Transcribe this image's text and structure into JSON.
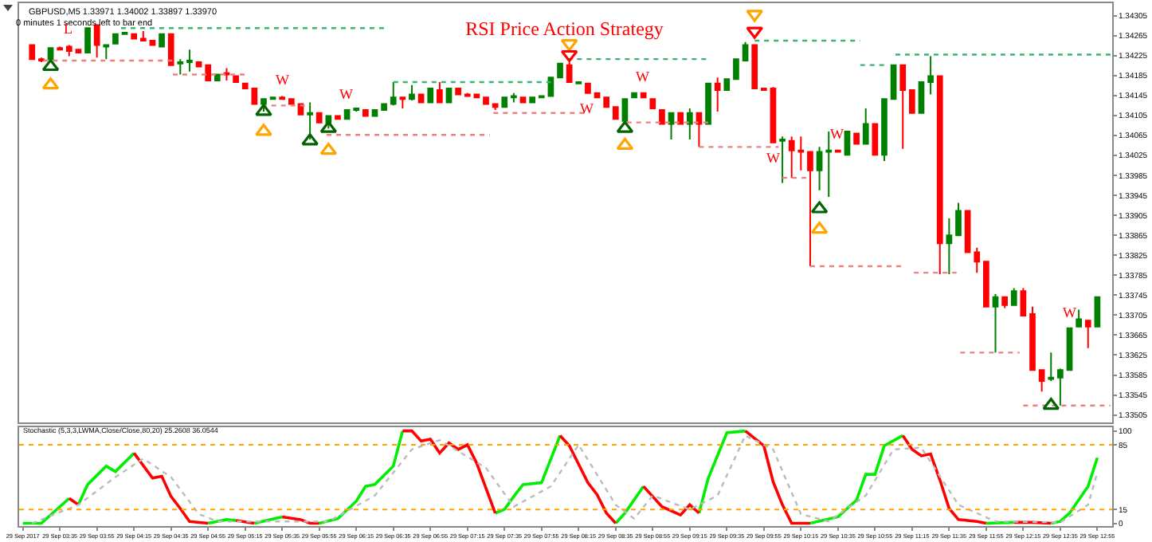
{
  "chart_data": [
    {
      "type": "candlestick",
      "title": "RSI Price Action Strategy",
      "annotations": [
        "GBPUSD,M5 1.33971 1.34002 1.33897 1.33970",
        "0 minutes 1 seconds left to bar end",
        {
          "text": "L",
          "x": "2017-09-29T03:40",
          "y": 1.34246
        },
        {
          "text": "W",
          "x": "2017-09-29T05:35",
          "y": 1.34144
        },
        {
          "text": "W",
          "x": "2017-09-29T06:10",
          "y": 1.34116
        },
        {
          "text": "W",
          "x": "2017-09-29T08:20",
          "y": 1.3415
        },
        {
          "text": "W",
          "x": "2017-09-29T08:50",
          "y": 1.3415
        },
        {
          "text": "W",
          "x": "2017-09-29T10:00",
          "y": 1.34051
        },
        {
          "text": "W",
          "x": "2017-09-29T10:35",
          "y": 1.34035
        },
        {
          "text": "W",
          "x": "2017-09-29T12:40",
          "y": 1.33679
        }
      ],
      "x": [
        "2017-09-29T03:20",
        "2017-09-29T03:25",
        "2017-09-29T03:30",
        "2017-09-29T03:35",
        "2017-09-29T03:40",
        "2017-09-29T03:45",
        "2017-09-29T03:50",
        "2017-09-29T03:55",
        "2017-09-29T04:00",
        "2017-09-29T04:05",
        "2017-09-29T04:10",
        "2017-09-29T04:15",
        "2017-09-29T04:20",
        "2017-09-29T04:25",
        "2017-09-29T04:30",
        "2017-09-29T04:35",
        "2017-09-29T04:40",
        "2017-09-29T04:45",
        "2017-09-29T04:50",
        "2017-09-29T04:55",
        "2017-09-29T05:00",
        "2017-09-29T05:05",
        "2017-09-29T05:10",
        "2017-09-29T05:15",
        "2017-09-29T05:20",
        "2017-09-29T05:25",
        "2017-09-29T05:30",
        "2017-09-29T05:35",
        "2017-09-29T05:40",
        "2017-09-29T05:45",
        "2017-09-29T05:50",
        "2017-09-29T05:55",
        "2017-09-29T06:00",
        "2017-09-29T06:05",
        "2017-09-29T06:10",
        "2017-09-29T06:15",
        "2017-09-29T06:20",
        "2017-09-29T06:25",
        "2017-09-29T06:30",
        "2017-09-29T06:35",
        "2017-09-29T06:40",
        "2017-09-29T06:45",
        "2017-09-29T06:50",
        "2017-09-29T06:55",
        "2017-09-29T07:00",
        "2017-09-29T07:05",
        "2017-09-29T07:10",
        "2017-09-29T07:15",
        "2017-09-29T07:20",
        "2017-09-29T07:25",
        "2017-09-29T07:30",
        "2017-09-29T07:35",
        "2017-09-29T07:40",
        "2017-09-29T07:45",
        "2017-09-29T07:50",
        "2017-09-29T07:55",
        "2017-09-29T08:00",
        "2017-09-29T08:05",
        "2017-09-29T08:10",
        "2017-09-29T08:15",
        "2017-09-29T08:20",
        "2017-09-29T08:25",
        "2017-09-29T08:30",
        "2017-09-29T08:35",
        "2017-09-29T08:40",
        "2017-09-29T08:45",
        "2017-09-29T08:50",
        "2017-09-29T08:55",
        "2017-09-29T09:00",
        "2017-09-29T09:05",
        "2017-09-29T09:10",
        "2017-09-29T09:15",
        "2017-09-29T09:20",
        "2017-09-29T09:25",
        "2017-09-29T09:30",
        "2017-09-29T09:35",
        "2017-09-29T09:40",
        "2017-09-29T09:45",
        "2017-09-29T09:50",
        "2017-09-29T09:55",
        "2017-09-29T10:00",
        "2017-09-29T10:05",
        "2017-09-29T10:10",
        "2017-09-29T10:15",
        "2017-09-29T10:20",
        "2017-09-29T10:25",
        "2017-09-29T10:30",
        "2017-09-29T10:35",
        "2017-09-29T10:40",
        "2017-09-29T10:45",
        "2017-09-29T10:50",
        "2017-09-29T10:55",
        "2017-09-29T11:00",
        "2017-09-29T11:05",
        "2017-09-29T11:10",
        "2017-09-29T11:15",
        "2017-09-29T11:20",
        "2017-09-29T11:25",
        "2017-09-29T11:30",
        "2017-09-29T11:35",
        "2017-09-29T11:40",
        "2017-09-29T11:45",
        "2017-09-29T11:50",
        "2017-09-29T11:55",
        "2017-09-29T12:00",
        "2017-09-29T12:05",
        "2017-09-29T12:10",
        "2017-09-29T12:15",
        "2017-09-29T12:20",
        "2017-09-29T12:25",
        "2017-09-29T12:30",
        "2017-09-29T12:35",
        "2017-09-29T12:40",
        "2017-09-29T12:45",
        "2017-09-29T12:50",
        "2017-09-29T12:55"
      ],
      "ohlc": [
        [
          1.34246,
          1.34246,
          1.34218,
          1.34218
        ],
        [
          1.34218,
          1.34221,
          1.34212,
          1.34215
        ],
        [
          1.34218,
          1.3424,
          1.34218,
          1.3424
        ],
        [
          1.3424,
          1.34243,
          1.34237,
          1.34237
        ],
        [
          1.34243,
          1.34246,
          1.34224,
          1.34234
        ],
        [
          1.34237,
          1.34237,
          1.34231,
          1.34231
        ],
        [
          1.34231,
          1.3428,
          1.34231,
          1.3428
        ],
        [
          1.34286,
          1.34286,
          1.34221,
          1.34246
        ],
        [
          1.34243,
          1.34246,
          1.34218,
          1.34246
        ],
        [
          1.34249,
          1.34268,
          1.34249,
          1.34268
        ],
        [
          1.34268,
          1.34271,
          1.34268,
          1.34271
        ],
        [
          1.34268,
          1.34268,
          1.34259,
          1.34259
        ],
        [
          1.34259,
          1.34274,
          1.34255,
          1.34255
        ],
        [
          1.34255,
          1.34255,
          1.34246,
          1.34246
        ],
        [
          1.34243,
          1.34268,
          1.34243,
          1.34268
        ],
        [
          1.34268,
          1.34268,
          1.34206,
          1.34206
        ],
        [
          1.34209,
          1.34218,
          1.34187,
          1.34212
        ],
        [
          1.34212,
          1.34237,
          1.34193,
          1.34215
        ],
        [
          1.34212,
          1.34212,
          1.34203,
          1.34203
        ],
        [
          1.34206,
          1.34206,
          1.34175,
          1.34175
        ],
        [
          1.34175,
          1.34187,
          1.34175,
          1.34187
        ],
        [
          1.3419,
          1.342,
          1.34175,
          1.34187
        ],
        [
          1.34184,
          1.34184,
          1.34172,
          1.34172
        ],
        [
          1.34169,
          1.34169,
          1.34159,
          1.34159
        ],
        [
          1.34159,
          1.34159,
          1.34128,
          1.34128
        ],
        [
          1.34128,
          1.34138,
          1.34113,
          1.34138
        ],
        [
          1.34138,
          1.34141,
          1.34138,
          1.34141
        ],
        [
          1.34141,
          1.34144,
          1.34138,
          1.34138
        ],
        [
          1.34138,
          1.34138,
          1.34128,
          1.34128
        ],
        [
          1.34128,
          1.34128,
          1.34107,
          1.34107
        ],
        [
          1.34107,
          1.34131,
          1.34057,
          1.3411
        ],
        [
          1.3411,
          1.3411,
          1.34091,
          1.34091
        ],
        [
          1.34091,
          1.34104,
          1.34079,
          1.34104
        ],
        [
          1.34104,
          1.34104,
          1.34098,
          1.34098
        ],
        [
          1.34098,
          1.34116,
          1.34098,
          1.34116
        ],
        [
          1.34116,
          1.34119,
          1.34113,
          1.34119
        ],
        [
          1.34116,
          1.34116,
          1.34104,
          1.34104
        ],
        [
          1.34104,
          1.34116,
          1.34104,
          1.34116
        ],
        [
          1.34116,
          1.34128,
          1.34116,
          1.34128
        ],
        [
          1.34128,
          1.34172,
          1.34125,
          1.34141
        ],
        [
          1.34141,
          1.34141,
          1.34119,
          1.34138
        ],
        [
          1.34138,
          1.34166,
          1.34135,
          1.34147
        ],
        [
          1.34147,
          1.34147,
          1.34131,
          1.34131
        ],
        [
          1.34131,
          1.34159,
          1.34131,
          1.34159
        ],
        [
          1.34156,
          1.34172,
          1.34131,
          1.34131
        ],
        [
          1.34131,
          1.34159,
          1.34131,
          1.34159
        ],
        [
          1.34159,
          1.34159,
          1.34147,
          1.34147
        ],
        [
          1.34147,
          1.3415,
          1.34144,
          1.34144
        ],
        [
          1.34147,
          1.34147,
          1.34141,
          1.34141
        ],
        [
          1.34141,
          1.34141,
          1.34128,
          1.34128
        ],
        [
          1.34128,
          1.34128,
          1.34116,
          1.34122
        ],
        [
          1.34122,
          1.34141,
          1.34122,
          1.34141
        ],
        [
          1.34141,
          1.3415,
          1.34131,
          1.34144
        ],
        [
          1.34141,
          1.34141,
          1.34131,
          1.34131
        ],
        [
          1.34131,
          1.34141,
          1.34131,
          1.34141
        ],
        [
          1.34141,
          1.34144,
          1.34141,
          1.34144
        ],
        [
          1.34144,
          1.34181,
          1.34144,
          1.34181
        ],
        [
          1.34181,
          1.34209,
          1.34181,
          1.34209
        ],
        [
          1.34206,
          1.34212,
          1.34172,
          1.34172
        ],
        [
          1.34169,
          1.34172,
          1.34169,
          1.34172
        ],
        [
          1.34169,
          1.34169,
          1.3415,
          1.3415
        ],
        [
          1.3415,
          1.3415,
          1.34141,
          1.34141
        ],
        [
          1.34141,
          1.34141,
          1.34122,
          1.34122
        ],
        [
          1.34122,
          1.34122,
          1.34098,
          1.34098
        ],
        [
          1.34094,
          1.34138,
          1.34094,
          1.34138
        ],
        [
          1.34141,
          1.3415,
          1.34141,
          1.3415
        ],
        [
          1.3415,
          1.3415,
          1.34141,
          1.34141
        ],
        [
          1.34138,
          1.34138,
          1.34119,
          1.34119
        ],
        [
          1.34116,
          1.34116,
          1.34088,
          1.34088
        ],
        [
          1.34088,
          1.3411,
          1.34057,
          1.3411
        ],
        [
          1.3411,
          1.3411,
          1.34088,
          1.34088
        ],
        [
          1.34088,
          1.34119,
          1.34057,
          1.3411
        ],
        [
          1.3411,
          1.3411,
          1.34042,
          1.34088
        ],
        [
          1.34088,
          1.34169,
          1.34088,
          1.34169
        ],
        [
          1.34169,
          1.34181,
          1.34113,
          1.34156
        ],
        [
          1.34156,
          1.34178,
          1.34156,
          1.34178
        ],
        [
          1.34178,
          1.34218,
          1.34178,
          1.34218
        ],
        [
          1.34215,
          1.34252,
          1.34215,
          1.34246
        ],
        [
          1.34246,
          1.34246,
          1.34159,
          1.34159
        ],
        [
          1.34159,
          1.34159,
          1.34156,
          1.34156
        ],
        [
          1.34159,
          1.34162,
          1.34051,
          1.34051
        ],
        [
          1.34054,
          1.34063,
          1.3397,
          1.34057
        ],
        [
          1.34054,
          1.34063,
          1.3398,
          1.34035
        ],
        [
          1.34035,
          1.34063,
          1.33995,
          1.34032
        ],
        [
          1.34032,
          1.34032,
          1.33803,
          1.33995
        ],
        [
          1.33995,
          1.34042,
          1.33955,
          1.34032
        ],
        [
          1.34032,
          1.34073,
          1.33942,
          1.34035
        ],
        [
          1.34035,
          1.34035,
          1.34032,
          1.34032
        ],
        [
          1.34026,
          1.34073,
          1.34026,
          1.34073
        ],
        [
          1.34069,
          1.34069,
          1.34048,
          1.34048
        ],
        [
          1.34048,
          1.34119,
          1.34048,
          1.34088
        ],
        [
          1.34088,
          1.34088,
          1.34026,
          1.34026
        ],
        [
          1.34026,
          1.34138,
          1.34014,
          1.34138
        ],
        [
          1.34138,
          1.34206,
          1.34138,
          1.34206
        ],
        [
          1.34206,
          1.34206,
          1.34038,
          1.34156
        ],
        [
          1.34156,
          1.34156,
          1.3411,
          1.3411
        ],
        [
          1.3411,
          1.34172,
          1.3411,
          1.34172
        ],
        [
          1.34172,
          1.34224,
          1.34147,
          1.34184
        ],
        [
          1.34184,
          1.34184,
          1.33787,
          1.33849
        ],
        [
          1.33849,
          1.33899,
          1.33787,
          1.33865
        ],
        [
          1.33865,
          1.3393,
          1.33865,
          1.33914
        ],
        [
          1.33914,
          1.33914,
          1.33831,
          1.33831
        ],
        [
          1.33831,
          1.3384,
          1.3379,
          1.33812
        ],
        [
          1.33812,
          1.33812,
          1.33722,
          1.33722
        ],
        [
          1.33722,
          1.33747,
          1.3363,
          1.33741
        ],
        [
          1.33741,
          1.33741,
          1.33719,
          1.33725
        ],
        [
          1.33725,
          1.33759,
          1.33725,
          1.33753
        ],
        [
          1.33753,
          1.33759,
          1.33704,
          1.33704
        ],
        [
          1.33707,
          1.33722,
          1.33595,
          1.33595
        ],
        [
          1.33595,
          1.33595,
          1.33552,
          1.33573
        ],
        [
          1.33577,
          1.3363,
          1.33573,
          1.3358
        ],
        [
          1.3358,
          1.33598,
          1.33524,
          1.33595
        ],
        [
          1.33595,
          1.33679,
          1.33595,
          1.33679
        ],
        [
          1.33682,
          1.33716,
          1.33682,
          1.33697
        ],
        [
          1.33694,
          1.33694,
          1.33639,
          1.33682
        ],
        [
          1.33682,
          1.33741,
          1.33682,
          1.33741
        ]
      ],
      "colors": [
        "#ff0000",
        "#ff0000",
        "#008000",
        "#ff0000",
        "#ff0000",
        "#ff0000",
        "#008000",
        "#ff0000",
        "#008000",
        "#008000",
        "#008000",
        "#ff0000",
        "#ff0000",
        "#ff0000",
        "#008000",
        "#ff0000",
        "#008000",
        "#008000",
        "#ff0000",
        "#ff0000",
        "#008000",
        "#ff0000",
        "#ff0000",
        "#ff0000",
        "#ff0000",
        "#008000",
        "#008000",
        "#ff0000",
        "#ff0000",
        "#ff0000",
        "#008000",
        "#ff0000",
        "#008000",
        "#ff0000",
        "#008000",
        "#008000",
        "#ff0000",
        "#008000",
        "#008000",
        "#008000",
        "#ff0000",
        "#008000",
        "#ff0000",
        "#008000",
        "#ff0000",
        "#008000",
        "#ff0000",
        "#ff0000",
        "#ff0000",
        "#ff0000",
        "#ff0000",
        "#008000",
        "#008000",
        "#ff0000",
        "#008000",
        "#008000",
        "#008000",
        "#008000",
        "#ff0000",
        "#008000",
        "#ff0000",
        "#ff0000",
        "#ff0000",
        "#ff0000",
        "#008000",
        "#008000",
        "#ff0000",
        "#ff0000",
        "#ff0000",
        "#008000",
        "#ff0000",
        "#008000",
        "#ff0000",
        "#008000",
        "#ff0000",
        "#008000",
        "#008000",
        "#008000",
        "#ff0000",
        "#ff0000",
        "#ff0000",
        "#008000",
        "#ff0000",
        "#ff0000",
        "#ff0000",
        "#008000",
        "#008000",
        "#ff0000",
        "#008000",
        "#ff0000",
        "#008000",
        "#ff0000",
        "#008000",
        "#008000",
        "#ff0000",
        "#ff0000",
        "#008000",
        "#008000",
        "#ff0000",
        "#008000",
        "#008000",
        "#ff0000",
        "#ff0000",
        "#ff0000",
        "#008000",
        "#ff0000",
        "#008000",
        "#ff0000",
        "#ff0000",
        "#ff0000",
        "#008000",
        "#008000",
        "#008000",
        "#008000",
        "#ff0000",
        "#008000"
      ],
      "series": [
        {
          "type": "line",
          "color": "#3cb371",
          "line_style": "dotted",
          "x": [
            "2017-09-29T04:08",
            "2017-09-29T06:31",
            null,
            "2017-09-29T06:35",
            "2017-09-29T08:00",
            null,
            "2017-09-29T08:09",
            "2017-09-29T09:25",
            null,
            "2017-09-29T09:50",
            "2017-09-29T10:47",
            null,
            "2017-09-29T10:47",
            "2017-09-29T11:01",
            null,
            "2017-09-29T11:06",
            "2017-09-29T13:03"
          ],
          "values": [
            1.3428,
            1.3428,
            null,
            1.34172,
            1.34172,
            null,
            1.34218,
            1.34218,
            null,
            1.34255,
            1.34255,
            null,
            1.34206,
            1.34206,
            null,
            1.34227,
            1.34227
          ]
        },
        {
          "type": "line",
          "color": "#f08080",
          "line_style": "dotted",
          "x": [
            "2017-09-29T03:26",
            "2017-09-29T04:36",
            null,
            "2017-09-29T04:36",
            "2017-09-29T05:17",
            null,
            "2017-09-29T05:24",
            "2017-09-29T05:50",
            null,
            "2017-09-29T05:59",
            "2017-09-29T07:27",
            null,
            "2017-09-29T07:29",
            "2017-09-29T08:19",
            null,
            "2017-09-29T08:41",
            "2017-09-29T09:25",
            null,
            "2017-09-29T09:20",
            "2017-09-29T10:03",
            null,
            "2017-09-29T10:05",
            "2017-09-29T10:20",
            null,
            "2017-09-29T10:20",
            "2017-09-29T11:11",
            null,
            "2017-09-29T11:16",
            "2017-09-29T11:39",
            null,
            "2017-09-29T11:41",
            "2017-09-29T12:13",
            null,
            "2017-09-29T12:15",
            "2017-09-29T13:02"
          ],
          "values": [
            1.34215,
            1.34215,
            null,
            1.34187,
            1.34187,
            null,
            1.34125,
            1.34125,
            null,
            1.34066,
            1.34066,
            null,
            1.3411,
            1.3411,
            null,
            1.34091,
            1.34091,
            null,
            1.34042,
            1.34042,
            null,
            1.3398,
            1.3398,
            null,
            1.33803,
            1.33803,
            null,
            1.3379,
            1.3379,
            null,
            1.3363,
            1.3363,
            null,
            1.33524,
            1.33524
          ]
        },
        {
          "type": "scatter",
          "marker": "triangle",
          "color": "#ffa500",
          "x": [
            "2017-09-29T03:30",
            "2017-09-29T05:25",
            "2017-09-29T06:00",
            "2017-09-29T08:40",
            "2017-09-29T10:25"
          ],
          "values": [
            1.34166,
            1.34073,
            1.34035,
            1.34045,
            1.33877
          ]
        },
        {
          "type": "scatter",
          "marker": "triangle",
          "color": "#006400",
          "x": [
            "2017-09-29T03:30",
            "2017-09-29T05:25",
            "2017-09-29T05:50",
            "2017-09-29T06:00",
            "2017-09-29T08:40",
            "2017-09-29T10:25",
            "2017-09-29T12:30"
          ],
          "values": [
            1.34203,
            1.34113,
            1.34054,
            1.34079,
            1.34079,
            1.33918,
            1.33524
          ]
        },
        {
          "type": "scatter",
          "marker": "triangle-down",
          "color": "#ffa500",
          "x": [
            "2017-09-29T08:10",
            "2017-09-29T09:50"
          ],
          "values": [
            1.34249,
            1.34308
          ]
        },
        {
          "type": "scatter",
          "marker": "triangle-down",
          "color": "#ff0000",
          "x": [
            "2017-09-29T08:10",
            "2017-09-29T09:50"
          ],
          "values": [
            1.34227,
            1.34274
          ]
        }
      ],
      "xlim": [
        "2017-09-29T03:13",
        "2017-09-29T13:03"
      ],
      "ylim": [
        1.3349,
        1.3433
      ],
      "yticks": [
        1.33505,
        1.33545,
        1.33585,
        1.33625,
        1.33665,
        1.33705,
        1.33745,
        1.33785,
        1.33825,
        1.33865,
        1.33905,
        1.33945,
        1.33985,
        1.34025,
        1.34065,
        1.34105,
        1.34145,
        1.34185,
        1.34225,
        1.34265,
        1.34305
      ],
      "tick_labels": "y"
    },
    {
      "type": "line",
      "title": "Stochastic (5,3,3,LWMA,Close/Close,80,20) 25.2608 36.0544",
      "series": [
        {
          "color": "#00ee00",
          "x": [
            "2017-09-29T03:15",
            "2017-09-29T03:25",
            "2017-09-29T03:40",
            null,
            "2017-09-29T03:45",
            "2017-09-29T03:50",
            "2017-09-29T04:00",
            "2017-09-29T04:05",
            "2017-09-29T04:15",
            null,
            "2017-09-29T04:55",
            "2017-09-29T05:05",
            "2017-09-29T05:10",
            null,
            "2017-09-29T05:20",
            "2017-09-29T05:35",
            null,
            "2017-09-29T05:55",
            "2017-09-29T06:05",
            "2017-09-29T06:15",
            "2017-09-29T06:20",
            "2017-09-29T06:25",
            "2017-09-29T06:35",
            "2017-09-29T06:40",
            null,
            "2017-09-29T07:30",
            "2017-09-29T07:35",
            "2017-09-29T07:40",
            "2017-09-29T07:45",
            "2017-09-29T07:55",
            "2017-09-29T08:05",
            null,
            "2017-09-29T08:35",
            "2017-09-29T08:40",
            "2017-09-29T08:50",
            null,
            "2017-09-29T09:20",
            "2017-09-29T09:25",
            "2017-09-29T09:35",
            "2017-09-29T09:45",
            null,
            "2017-09-29T10:20",
            "2017-09-29T10:35",
            "2017-09-29T10:45",
            "2017-09-29T10:50",
            "2017-09-29T10:55",
            "2017-09-29T11:00",
            "2017-09-29T11:10",
            null,
            "2017-09-29T11:55",
            "2017-09-29T12:10",
            null,
            "2017-09-29T12:30",
            "2017-09-29T12:35",
            "2017-09-29T12:40",
            "2017-09-29T12:50",
            "2017-09-29T12:55"
          ],
          "values": [
            0,
            0,
            27,
            null,
            20,
            42,
            62,
            56,
            76,
            null,
            0,
            4,
            3,
            null,
            0,
            7,
            null,
            0,
            5,
            24,
            40,
            42,
            62,
            100,
            null,
            11,
            15,
            29,
            42,
            44,
            95,
            null,
            0,
            11,
            40,
            null,
            11,
            49,
            98,
            100,
            null,
            0,
            7,
            25,
            53,
            53,
            84,
            95,
            null,
            0,
            1,
            null,
            0,
            2,
            11,
            40,
            71
          ]
        },
        {
          "color": "#ff0000",
          "x": [
            "2017-09-29T03:40",
            "2017-09-29T03:45",
            null,
            "2017-09-29T04:15",
            "2017-09-29T04:25",
            "2017-09-29T04:30",
            "2017-09-29T04:35",
            "2017-09-29T04:40",
            "2017-09-29T04:45",
            "2017-09-29T04:55",
            null,
            "2017-09-29T05:10",
            "2017-09-29T05:20",
            null,
            "2017-09-29T05:35",
            "2017-09-29T05:45",
            "2017-09-29T05:50",
            "2017-09-29T05:55",
            null,
            "2017-09-29T06:40",
            "2017-09-29T06:45",
            "2017-09-29T06:50",
            "2017-09-29T06:55",
            "2017-09-29T07:00",
            "2017-09-29T07:05",
            "2017-09-29T07:10",
            "2017-09-29T07:15",
            "2017-09-29T07:20",
            "2017-09-29T07:30",
            null,
            "2017-09-29T08:05",
            "2017-09-29T08:10",
            "2017-09-29T08:20",
            "2017-09-29T08:25",
            "2017-09-29T08:30",
            "2017-09-29T08:35",
            null,
            "2017-09-29T08:50",
            "2017-09-29T09:00",
            "2017-09-29T09:10",
            "2017-09-29T09:15",
            "2017-09-29T09:20",
            null,
            "2017-09-29T09:45",
            "2017-09-29T09:55",
            "2017-09-29T10:00",
            "2017-09-29T10:05",
            "2017-09-29T10:10",
            "2017-09-29T10:20",
            null,
            "2017-09-29T11:10",
            "2017-09-29T11:15",
            "2017-09-29T11:20",
            "2017-09-29T11:25",
            "2017-09-29T11:30",
            "2017-09-29T11:35",
            "2017-09-29T11:40",
            "2017-09-29T11:50",
            "2017-09-29T11:55",
            null,
            "2017-09-29T12:10",
            "2017-09-29T12:20",
            "2017-09-29T12:30"
          ],
          "values": [
            27,
            20,
            null,
            76,
            49,
            51,
            29,
            16,
            2,
            0,
            null,
            3,
            0,
            null,
            7,
            4,
            0,
            0,
            null,
            100,
            100,
            89,
            91,
            76,
            87,
            80,
            85,
            65,
            11,
            null,
            95,
            84,
            44,
            31,
            11,
            0,
            null,
            40,
            18,
            9,
            20,
            11,
            null,
            100,
            84,
            45,
            20,
            0,
            0,
            null,
            95,
            80,
            73,
            75,
            47,
            16,
            4,
            2,
            0,
            null,
            1,
            1,
            0
          ]
        },
        {
          "color": "#bbbbbb",
          "line_style": "dotted",
          "x": [
            "2017-09-29T03:20",
            "2017-09-29T03:45",
            "2017-09-29T04:05",
            "2017-09-29T04:20",
            "2017-09-29T04:35",
            "2017-09-29T04:50",
            "2017-09-29T05:00",
            "2017-09-29T05:30",
            "2017-09-29T06:00",
            "2017-09-29T06:25",
            "2017-09-29T06:45",
            "2017-09-29T07:00",
            "2017-09-29T07:25",
            "2017-09-29T07:40",
            "2017-09-29T08:00",
            "2017-09-29T08:15",
            "2017-09-29T08:35",
            "2017-09-29T08:45",
            "2017-09-29T08:55",
            "2017-09-29T09:15",
            "2017-09-29T09:30",
            "2017-09-29T09:45",
            "2017-09-29T10:00",
            "2017-09-29T10:15",
            "2017-09-29T10:30",
            "2017-09-29T10:50",
            "2017-09-29T11:05",
            "2017-09-29T11:20",
            "2017-09-29T11:40",
            "2017-09-29T12:00",
            "2017-09-29T12:35",
            "2017-09-29T12:50",
            "2017-09-29T12:55"
          ],
          "values": [
            0,
            20,
            50,
            70,
            50,
            10,
            2,
            2,
            2,
            30,
            80,
            90,
            60,
            18,
            40,
            85,
            20,
            5,
            30,
            15,
            30,
            95,
            80,
            10,
            2,
            30,
            80,
            82,
            20,
            2,
            1,
            20,
            55
          ]
        }
      ],
      "xlim": [
        "2017-09-29T03:13",
        "2017-09-29T13:03"
      ],
      "xticks": [
        {
          "value": "2017-09-29T03:15",
          "label": "29 Sep 2017"
        },
        {
          "value": "2017-09-29T03:35",
          "label": "29 Sep 03:35"
        },
        {
          "value": "2017-09-29T03:55",
          "label": "29 Sep 03:55"
        },
        {
          "value": "2017-09-29T04:15",
          "label": "29 Sep 04:15"
        },
        {
          "value": "2017-09-29T04:35",
          "label": "29 Sep 04:35"
        },
        {
          "value": "2017-09-29T04:55",
          "label": "29 Sep 04:55"
        },
        {
          "value": "2017-09-29T05:15",
          "label": "29 Sep 05:15"
        },
        {
          "value": "2017-09-29T05:35",
          "label": "29 Sep 05:35"
        },
        {
          "value": "2017-09-29T05:55",
          "label": "29 Sep 05:55"
        },
        {
          "value": "2017-09-29T06:15",
          "label": "29 Sep 06:15"
        },
        {
          "value": "2017-09-29T06:35",
          "label": "29 Sep 06:35"
        },
        {
          "value": "2017-09-29T06:55",
          "label": "29 Sep 06:55"
        },
        {
          "value": "2017-09-29T07:15",
          "label": "29 Sep 07:15"
        },
        {
          "value": "2017-09-29T07:35",
          "label": "29 Sep 07:35"
        },
        {
          "value": "2017-09-29T07:55",
          "label": "29 Sep 07:55"
        },
        {
          "value": "2017-09-29T08:15",
          "label": "29 Sep 08:15"
        },
        {
          "value": "2017-09-29T08:35",
          "label": "29 Sep 08:35"
        },
        {
          "value": "2017-09-29T08:55",
          "label": "29 Sep 08:55"
        },
        {
          "value": "2017-09-29T09:15",
          "label": "29 Sep 09:15"
        },
        {
          "value": "2017-09-29T09:35",
          "label": "29 Sep 09:35"
        },
        {
          "value": "2017-09-29T09:55",
          "label": "29 Sep 09:55"
        },
        {
          "value": "2017-09-29T10:15",
          "label": "29 Sep 10:15"
        },
        {
          "value": "2017-09-29T10:35",
          "label": "29 Sep 10:35"
        },
        {
          "value": "2017-09-29T10:55",
          "label": "29 Sep 10:55"
        },
        {
          "value": "2017-09-29T11:15",
          "label": "29 Sep 11:15"
        },
        {
          "value": "2017-09-29T11:35",
          "label": "29 Sep 11:35"
        },
        {
          "value": "2017-09-29T11:55",
          "label": "29 Sep 11:55"
        },
        {
          "value": "2017-09-29T12:15",
          "label": "29 Sep 12:15"
        },
        {
          "value": "2017-09-29T12:35",
          "label": "29 Sep 12:35"
        },
        {
          "value": "2017-09-29T12:55",
          "label": "29 Sep 12:55"
        }
      ],
      "ylim": [
        -3,
        104
      ],
      "yticks": [
        0,
        15,
        85,
        100
      ],
      "ref_lines": [
        {
          "axis": "y",
          "value": 85,
          "color": "#ffa500",
          "line_style": "dotted"
        },
        {
          "axis": "y",
          "value": 15,
          "color": "#ffa500",
          "line_style": "dotted"
        }
      ]
    }
  ]
}
